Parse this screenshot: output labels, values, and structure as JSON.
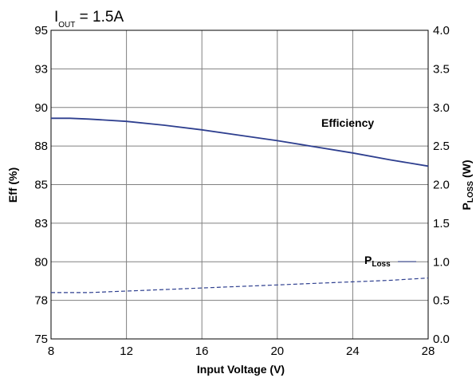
{
  "chart_data": {
    "type": "line",
    "condition": {
      "main": "I",
      "sub": "OUT",
      "rest": " = 1.5A"
    },
    "x": [
      8,
      9,
      10,
      12,
      14,
      16,
      18,
      20,
      22,
      24,
      26,
      28
    ],
    "xlabel": "Input  Voltage (V)",
    "xlim": [
      8,
      28
    ],
    "xticks": [
      "8",
      "12",
      "16",
      "20",
      "24",
      "28"
    ],
    "xtick_values": [
      8,
      12,
      16,
      20,
      24,
      28
    ],
    "y_left": {
      "label": "Eff (%)",
      "lim": [
        75,
        95
      ],
      "ticks": [
        "75",
        "78",
        "80",
        "83",
        "85",
        "88",
        "90",
        "93",
        "95"
      ],
      "tick_values": [
        75,
        77.5,
        80,
        82.5,
        85,
        87.5,
        90,
        92.5,
        95
      ]
    },
    "y_right": {
      "label_main": "P",
      "label_sub": "LOSS",
      "label_rest": " (W)",
      "lim": [
        0,
        4
      ],
      "ticks": [
        "0.0",
        "0.5",
        "1.0",
        "1.5",
        "2.0",
        "2.5",
        "3.0",
        "3.5",
        "4.0"
      ],
      "tick_values": [
        0,
        0.5,
        1.0,
        1.5,
        2.0,
        2.5,
        3.0,
        3.5,
        4.0
      ]
    },
    "grid": true,
    "series": [
      {
        "name": "Efficiency",
        "axis": "left",
        "style": "solid",
        "color": "#2e3f8f",
        "values": [
          89.3,
          89.3,
          89.25,
          89.1,
          88.85,
          88.55,
          88.2,
          87.85,
          87.45,
          87.05,
          86.6,
          86.2
        ]
      },
      {
        "name_main": "P",
        "name_sub": "LOSS",
        "axis": "right",
        "style": "dashed",
        "color": "#2e3f8f",
        "values": [
          0.6,
          0.6,
          0.6,
          0.62,
          0.64,
          0.66,
          0.68,
          0.7,
          0.72,
          0.74,
          0.76,
          0.79
        ]
      }
    ],
    "annotations": {
      "efficiency_label": "Efficiency",
      "ploss_main": "P",
      "ploss_sub": "Loss"
    }
  }
}
